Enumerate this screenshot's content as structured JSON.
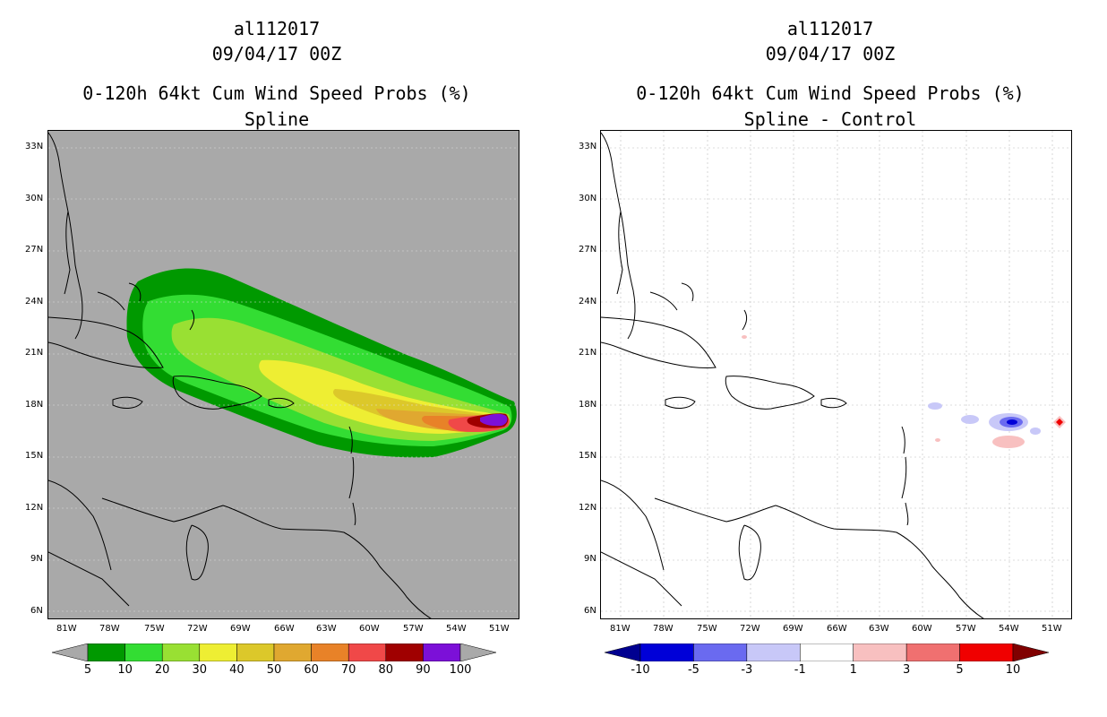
{
  "left_panel": {
    "storm_id": "al112017",
    "datetime": "09/04/17 00Z",
    "product": "0-120h 64kt Cum Wind Speed Probs (%)",
    "subtitle": "Spline",
    "background_color": "#a9a9a9",
    "lat_labels": [
      "33N",
      "30N",
      "27N",
      "24N",
      "21N",
      "18N",
      "15N",
      "12N",
      "9N",
      "6N"
    ],
    "lon_labels": [
      "81W",
      "78W",
      "75W",
      "72W",
      "69W",
      "66W",
      "63W",
      "60W",
      "57W",
      "54W",
      "51W"
    ],
    "colorbar": {
      "labels": [
        "5",
        "10",
        "20",
        "30",
        "40",
        "50",
        "60",
        "70",
        "80",
        "90",
        "100"
      ],
      "colors": [
        "#009900",
        "#33dd33",
        "#99e033",
        "#eeee33",
        "#dcc82a",
        "#e0a830",
        "#e88228",
        "#f04848",
        "#a00000",
        "#7c10d8"
      ],
      "under_color": "#a9a9a9",
      "over_color": "#a9a9a9"
    }
  },
  "right_panel": {
    "storm_id": "al112017",
    "datetime": "09/04/17 00Z",
    "product": "0-120h 64kt Cum Wind Speed Probs (%)",
    "subtitle": "Spline - Control",
    "background_color": "#ffffff",
    "lat_labels": [
      "33N",
      "30N",
      "27N",
      "24N",
      "21N",
      "18N",
      "15N",
      "12N",
      "9N",
      "6N"
    ],
    "lon_labels": [
      "81W",
      "78W",
      "75W",
      "72W",
      "69W",
      "66W",
      "63W",
      "60W",
      "57W",
      "54W",
      "51W"
    ],
    "colorbar": {
      "labels": [
        "-10",
        "-5",
        "-3",
        "-1",
        "1",
        "3",
        "5",
        "10"
      ],
      "colors": [
        "#0000d8",
        "#6a6af0",
        "#c8c8f8",
        "#ffffff",
        "#f8c0c0",
        "#f07070",
        "#f00000"
      ],
      "under_color": "#000090",
      "over_color": "#800000"
    }
  }
}
